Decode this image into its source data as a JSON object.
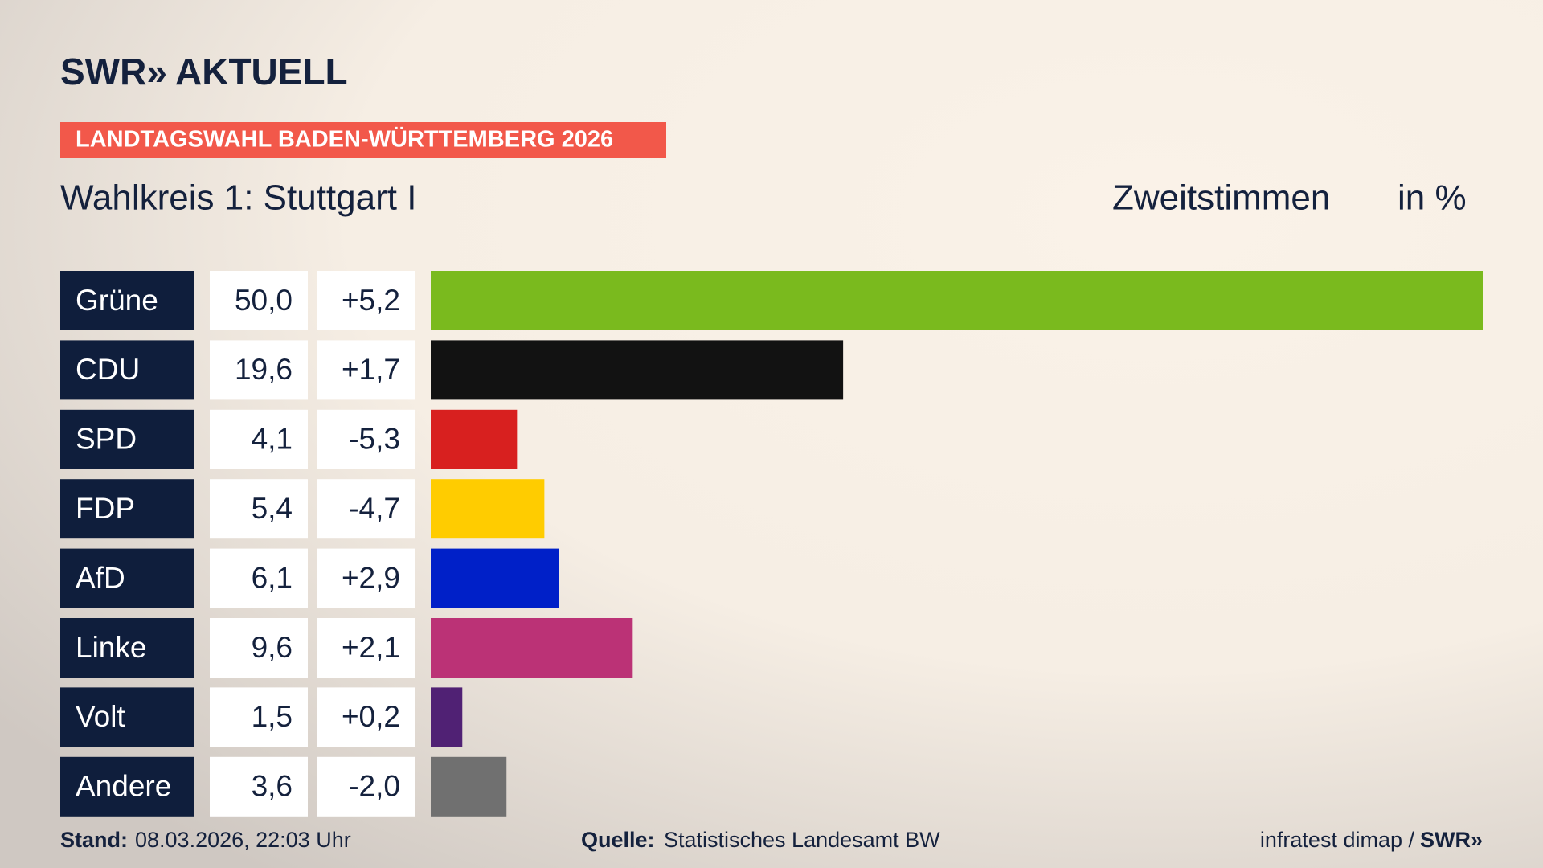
{
  "chart_data": {
    "type": "bar",
    "brand": "SWR»",
    "brand_suffix": "AKTUELL",
    "banner": "LANDTAGSWAHL BADEN-WÜRTTEMBERG 2026",
    "title": "Wahlkreis 1: Stuttgart I",
    "measure": "Zweitstimmen",
    "unit": "in %",
    "categories": [
      "Grüne",
      "CDU",
      "SPD",
      "FDP",
      "AfD",
      "Linke",
      "Volt",
      "Andere"
    ],
    "values": [
      50.0,
      19.6,
      4.1,
      5.4,
      6.1,
      9.6,
      1.5,
      3.6
    ],
    "value_labels": [
      "50,0",
      "19,6",
      "4,1",
      "5,4",
      "6,1",
      "9,6",
      "1,5",
      "3,6"
    ],
    "changes": [
      5.2,
      1.7,
      -5.3,
      -4.7,
      2.9,
      2.1,
      0.2,
      -2.0
    ],
    "change_labels": [
      "+5,2",
      "+1,7",
      "-5,3",
      "-4,7",
      "+2,9",
      "+2,1",
      "+0,2",
      "-2,0"
    ],
    "colors": [
      "#7aba1e",
      "#121212",
      "#d8201f",
      "#ffcc00",
      "#0020c8",
      "#bb3276",
      "#502174",
      "#707070"
    ],
    "footer": {
      "stand_label": "Stand:",
      "stand": "08.03.2026, 22:03 Uhr",
      "source_label": "Quelle:",
      "source": "Statistisches Landesamt BW",
      "credit": "infratest dimap /",
      "credit_brand": "SWR»"
    }
  }
}
